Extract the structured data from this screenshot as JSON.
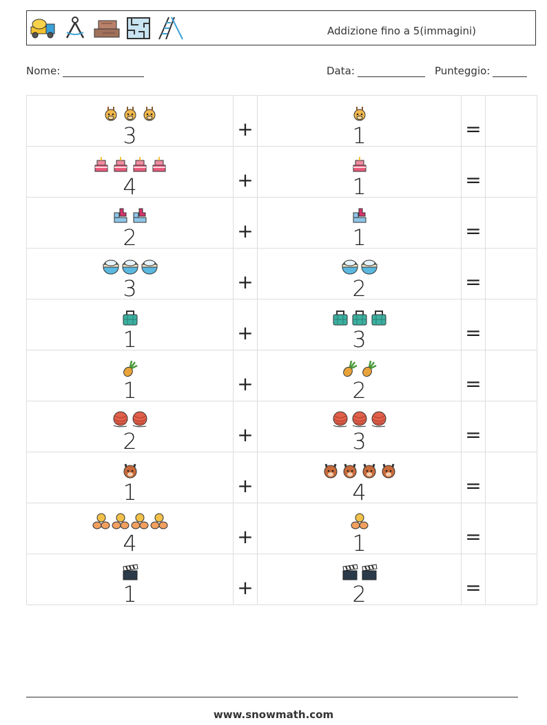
{
  "header": {
    "title": "Addizione fino a 5(immagini)",
    "icons": [
      "cement-truck-icon",
      "compass-icon",
      "wood-logs-icon",
      "maze-icon",
      "ladder-icon"
    ]
  },
  "info": {
    "name_label": "Nome:",
    "date_label": "Data:",
    "score_label": "Punteggio:"
  },
  "operators": {
    "plus": "+",
    "equals": "="
  },
  "rows": [
    {
      "left_icon": "giraffe",
      "left": "3",
      "right_icon": "giraffe",
      "right": "1"
    },
    {
      "left_icon": "cake",
      "left": "4",
      "right_icon": "cake",
      "right": "1"
    },
    {
      "left_icon": "blocks",
      "left": "2",
      "right_icon": "blocks",
      "right": "1"
    },
    {
      "left_icon": "bowl",
      "left": "3",
      "right_icon": "bowl",
      "right": "2"
    },
    {
      "left_icon": "bag",
      "left": "1",
      "right_icon": "bag",
      "right": "3"
    },
    {
      "left_icon": "pineapple",
      "left": "1",
      "right_icon": "pineapple",
      "right": "2"
    },
    {
      "left_icon": "yarn",
      "left": "2",
      "right_icon": "yarn",
      "right": "3"
    },
    {
      "left_icon": "squirrel",
      "left": "1",
      "right_icon": "squirrel",
      "right": "4"
    },
    {
      "left_icon": "baby",
      "left": "4",
      "right_icon": "baby",
      "right": "1"
    },
    {
      "left_icon": "clapperboard",
      "left": "1",
      "right_icon": "clapperboard",
      "right": "2"
    }
  ],
  "footer": {
    "url": "www.snowmath.com"
  },
  "colors": {
    "border": "#333333",
    "grid": "#dddddd"
  }
}
